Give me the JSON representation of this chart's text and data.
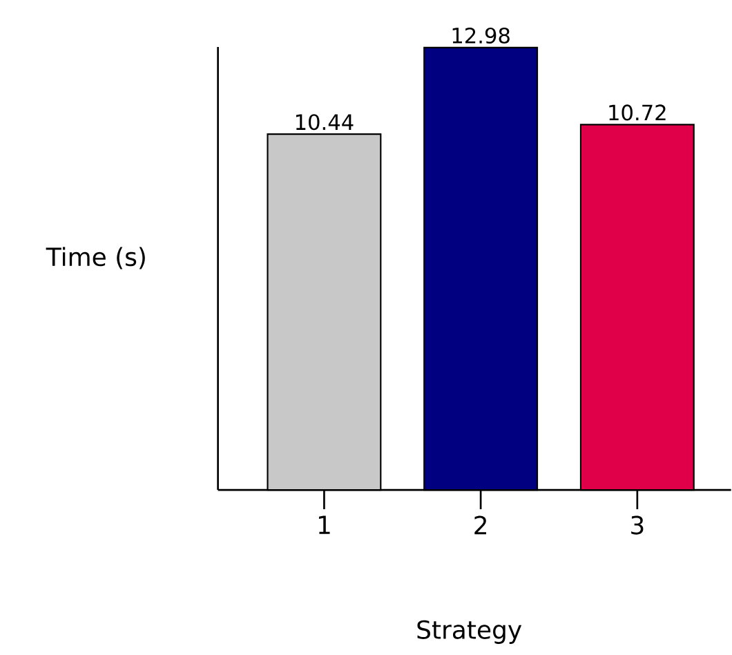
{
  "chart_data": {
    "type": "bar",
    "categories": [
      "1",
      "2",
      "3"
    ],
    "values": [
      10.44,
      12.98,
      10.72
    ],
    "colors": [
      "#c8c8c8",
      "#000080",
      "#e0004a"
    ],
    "xlabel": "Strategy",
    "ylabel": "Time (s)",
    "ylim": [
      0,
      13
    ],
    "data_labels": true
  }
}
